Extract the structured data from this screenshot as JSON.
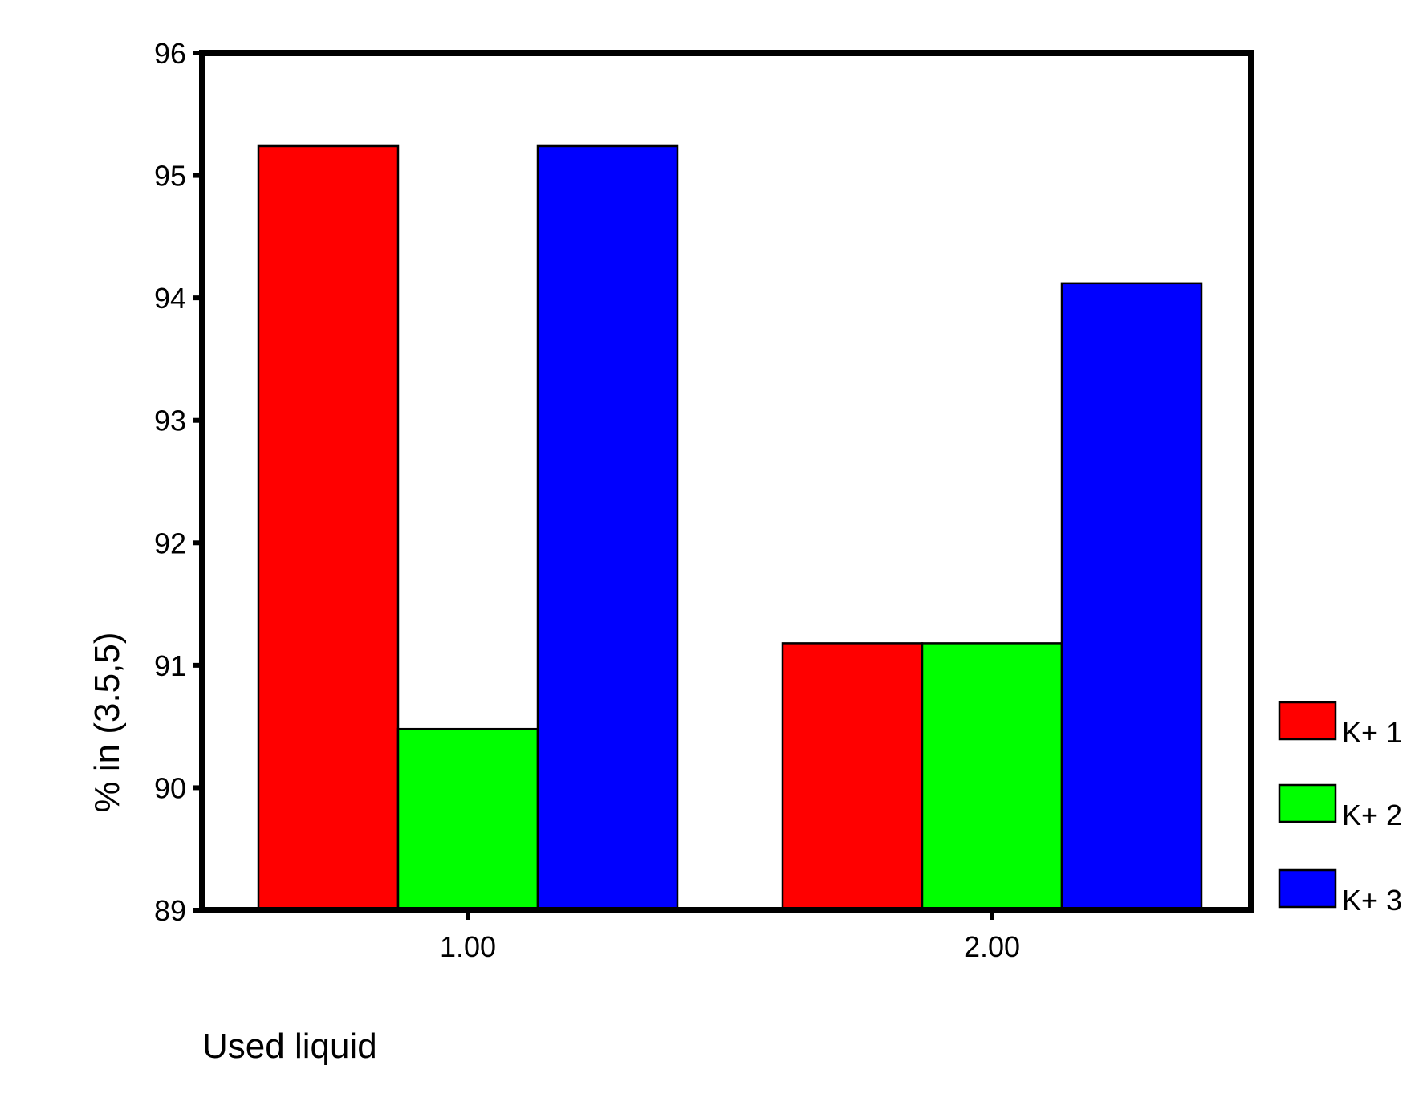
{
  "chart_data": {
    "type": "bar",
    "title": "",
    "xlabel": "Used liquid",
    "ylabel": "% in (3.5,5)",
    "categories": [
      "1.00",
      "2.00"
    ],
    "series": [
      {
        "name": "K+ 1",
        "color": "#ff0000",
        "values": [
          95.24,
          91.18
        ]
      },
      {
        "name": "K+ 2",
        "color": "#00ff00",
        "values": [
          90.48,
          91.18
        ]
      },
      {
        "name": "K+ 3",
        "color": "#0000ff",
        "values": [
          95.24,
          94.12
        ]
      }
    ],
    "ylim": [
      89,
      96
    ],
    "yticks": [
      "89",
      "90",
      "91",
      "92",
      "93",
      "94",
      "95",
      "96"
    ],
    "grid": false,
    "legend_position": "right"
  }
}
